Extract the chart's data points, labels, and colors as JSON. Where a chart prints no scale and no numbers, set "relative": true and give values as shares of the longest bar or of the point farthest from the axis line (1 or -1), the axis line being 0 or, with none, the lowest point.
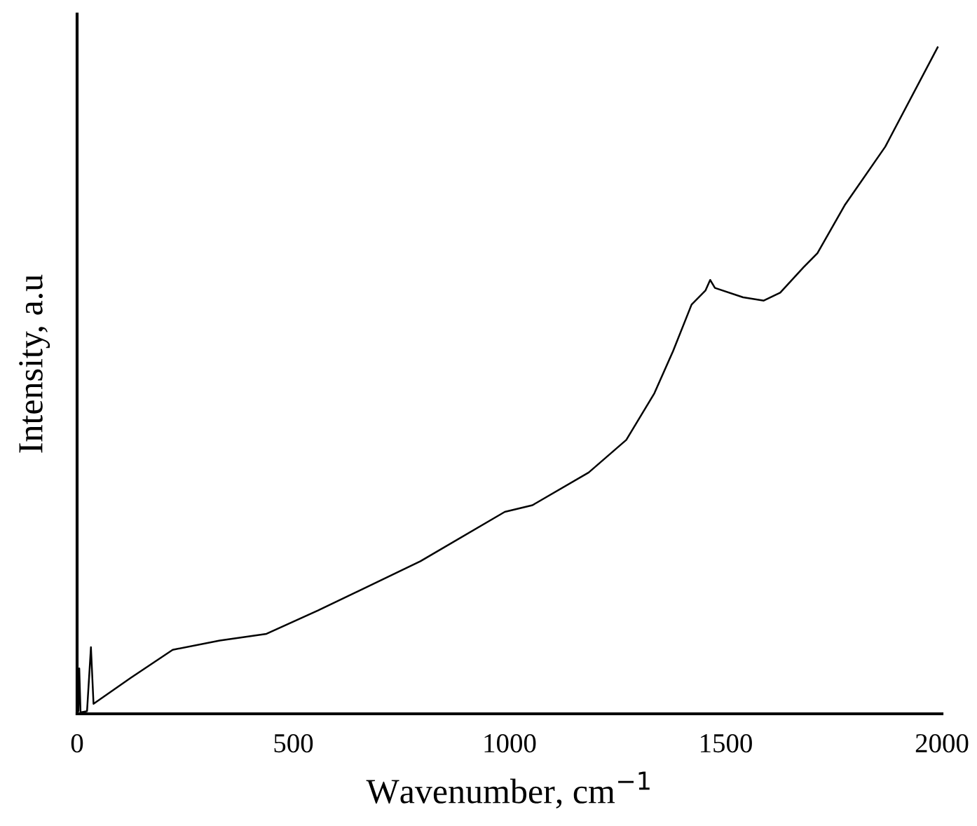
{
  "chart_data": {
    "type": "line",
    "relative": true,
    "xlabel": "Wavenumber, cm$^{−1}$",
    "ylabel": "Intensity, a.u",
    "xlim": [
      0,
      2000
    ],
    "xticks": [
      0,
      500,
      1000,
      1500,
      2000
    ],
    "grid": false,
    "legend": false,
    "marker": "none",
    "line_style": "solid",
    "series": [
      {
        "color": "#000000",
        "x": [
          0,
          3,
          5,
          8,
          23,
          32,
          38,
          124,
          221,
          330,
          438,
          557,
          794,
          989,
          1053,
          1183,
          1270,
          1335,
          1378,
          1421,
          1453,
          1464,
          1475,
          1540,
          1588,
          1626,
          1680,
          1712,
          1775,
          1869,
          1990
        ],
        "values": [
          0.004,
          0.004,
          0.068,
          0.002,
          0.004,
          0.1,
          0.015,
          0.054,
          0.096,
          0.11,
          0.12,
          0.155,
          0.229,
          0.303,
          0.313,
          0.362,
          0.411,
          0.481,
          0.544,
          0.614,
          0.635,
          0.651,
          0.639,
          0.625,
          0.62,
          0.632,
          0.67,
          0.691,
          0.763,
          0.851,
          1.0
        ]
      }
    ]
  }
}
